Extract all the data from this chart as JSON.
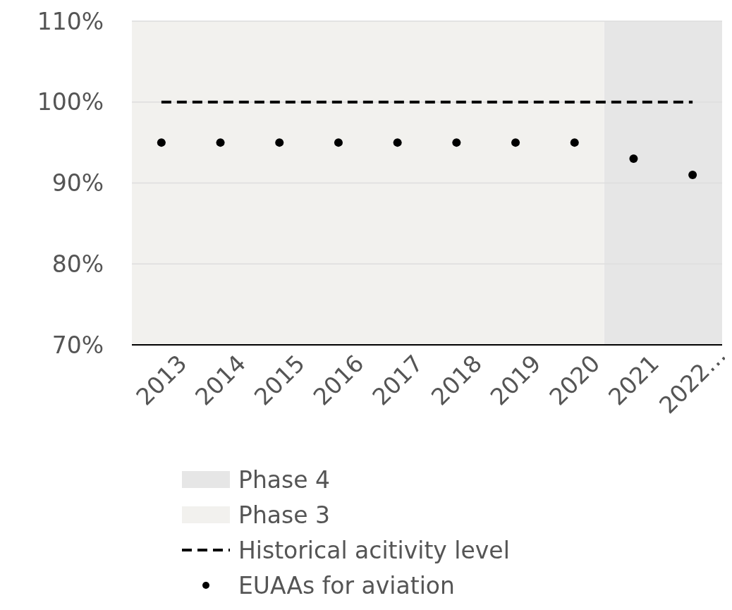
{
  "chart_data": {
    "type": "scatter",
    "categories": [
      "2013",
      "2014",
      "2015",
      "2016",
      "2017",
      "2018",
      "2019",
      "2020",
      "2021",
      "2022…"
    ],
    "series": [
      {
        "name": "Historical acitivity level",
        "type": "line",
        "color": "#000000",
        "line_style": "dashed",
        "marker": "none",
        "values": [
          100,
          100,
          100,
          100,
          100,
          100,
          100,
          100,
          100,
          100
        ]
      },
      {
        "name": "EUAAs for aviation",
        "type": "scatter",
        "color": "#000000",
        "marker": "circle",
        "values": [
          95,
          95,
          95,
          95,
          95,
          95,
          95,
          95,
          93,
          91
        ]
      }
    ],
    "bands": [
      {
        "axis": "x",
        "from": "2021",
        "to": "2022…",
        "label": "Phase 4",
        "color": "#e6e6e6"
      },
      {
        "axis": "x",
        "from": "2013",
        "to": "2020",
        "label": "Phase 3",
        "color": "#f2f1ee"
      }
    ],
    "ylim": [
      70,
      110
    ],
    "yticks": [
      {
        "value": 70,
        "label": "70%"
      },
      {
        "value": 80,
        "label": "80%"
      },
      {
        "value": 90,
        "label": "90%"
      },
      {
        "value": 100,
        "label": "100%"
      },
      {
        "value": 110,
        "label": "110%"
      }
    ],
    "grid": "y",
    "legend": "bottom"
  }
}
